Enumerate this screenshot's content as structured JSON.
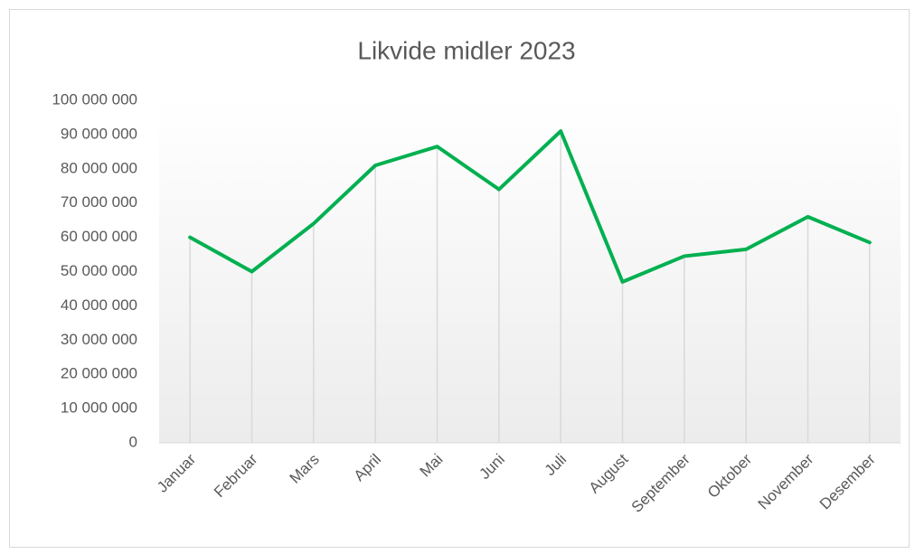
{
  "chart_data": {
    "type": "line",
    "title": "Likvide midler 2023",
    "categories": [
      "Januar",
      "Februar",
      "Mars",
      "April",
      "Mai",
      "Juni",
      "Juli",
      "August",
      "September",
      "Oktober",
      "November",
      "Desember"
    ],
    "series": [
      {
        "name": "Likvide midler",
        "color": "#00b050",
        "values": [
          60000000,
          50000000,
          64000000,
          81000000,
          86500000,
          74000000,
          91000000,
          47000000,
          54500000,
          56500000,
          66000000,
          58500000
        ]
      }
    ],
    "ylim": [
      0,
      100000000
    ],
    "yticks": [
      0,
      {
        "value": 10000000,
        "label": "10 000 000"
      },
      {
        "value": 20000000,
        "label": "20 000 000"
      },
      {
        "value": 30000000,
        "label": "30 000 000"
      },
      {
        "value": 40000000,
        "label": "40 000 000"
      },
      {
        "value": 50000000,
        "label": "50 000 000"
      },
      {
        "value": 60000000,
        "label": "60 000 000"
      },
      {
        "value": 70000000,
        "label": "70 000 000"
      },
      {
        "value": 80000000,
        "label": "80 000 000"
      },
      {
        "value": 90000000,
        "label": "90 000 000"
      },
      {
        "value": 100000000,
        "label": "100 000 000"
      }
    ],
    "drop_lines": true
  }
}
